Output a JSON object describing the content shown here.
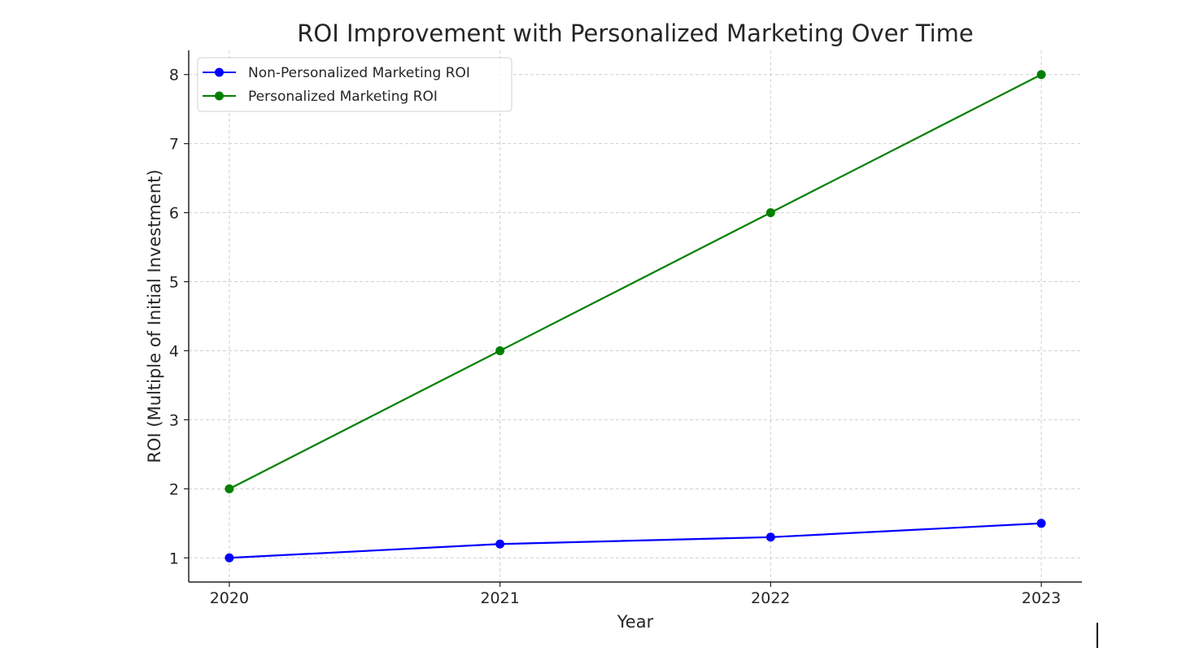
{
  "chart_data": {
    "type": "line",
    "title": "ROI Improvement with Personalized Marketing Over Time",
    "xlabel": "Year",
    "ylabel": "ROI (Multiple of Initial Investment)",
    "x": [
      2020,
      2021,
      2022,
      2023
    ],
    "x_tick_labels": [
      "2020",
      "2021",
      "2022",
      "2023"
    ],
    "y_ticks": [
      1,
      2,
      3,
      4,
      5,
      6,
      7,
      8
    ],
    "y_tick_labels": [
      "1",
      "2",
      "3",
      "4",
      "5",
      "6",
      "7",
      "8"
    ],
    "xlim": [
      2019.85,
      2023.15
    ],
    "ylim": [
      0.65,
      8.35
    ],
    "grid": true,
    "legend_position": "top-left",
    "series": [
      {
        "name": "Non-Personalized Marketing ROI",
        "color": "#0000ff",
        "marker": "circle",
        "values": [
          1.0,
          1.2,
          1.3,
          1.5
        ]
      },
      {
        "name": "Personalized Marketing ROI",
        "color": "#008000",
        "marker": "circle",
        "values": [
          2,
          4,
          6,
          8
        ]
      }
    ]
  }
}
